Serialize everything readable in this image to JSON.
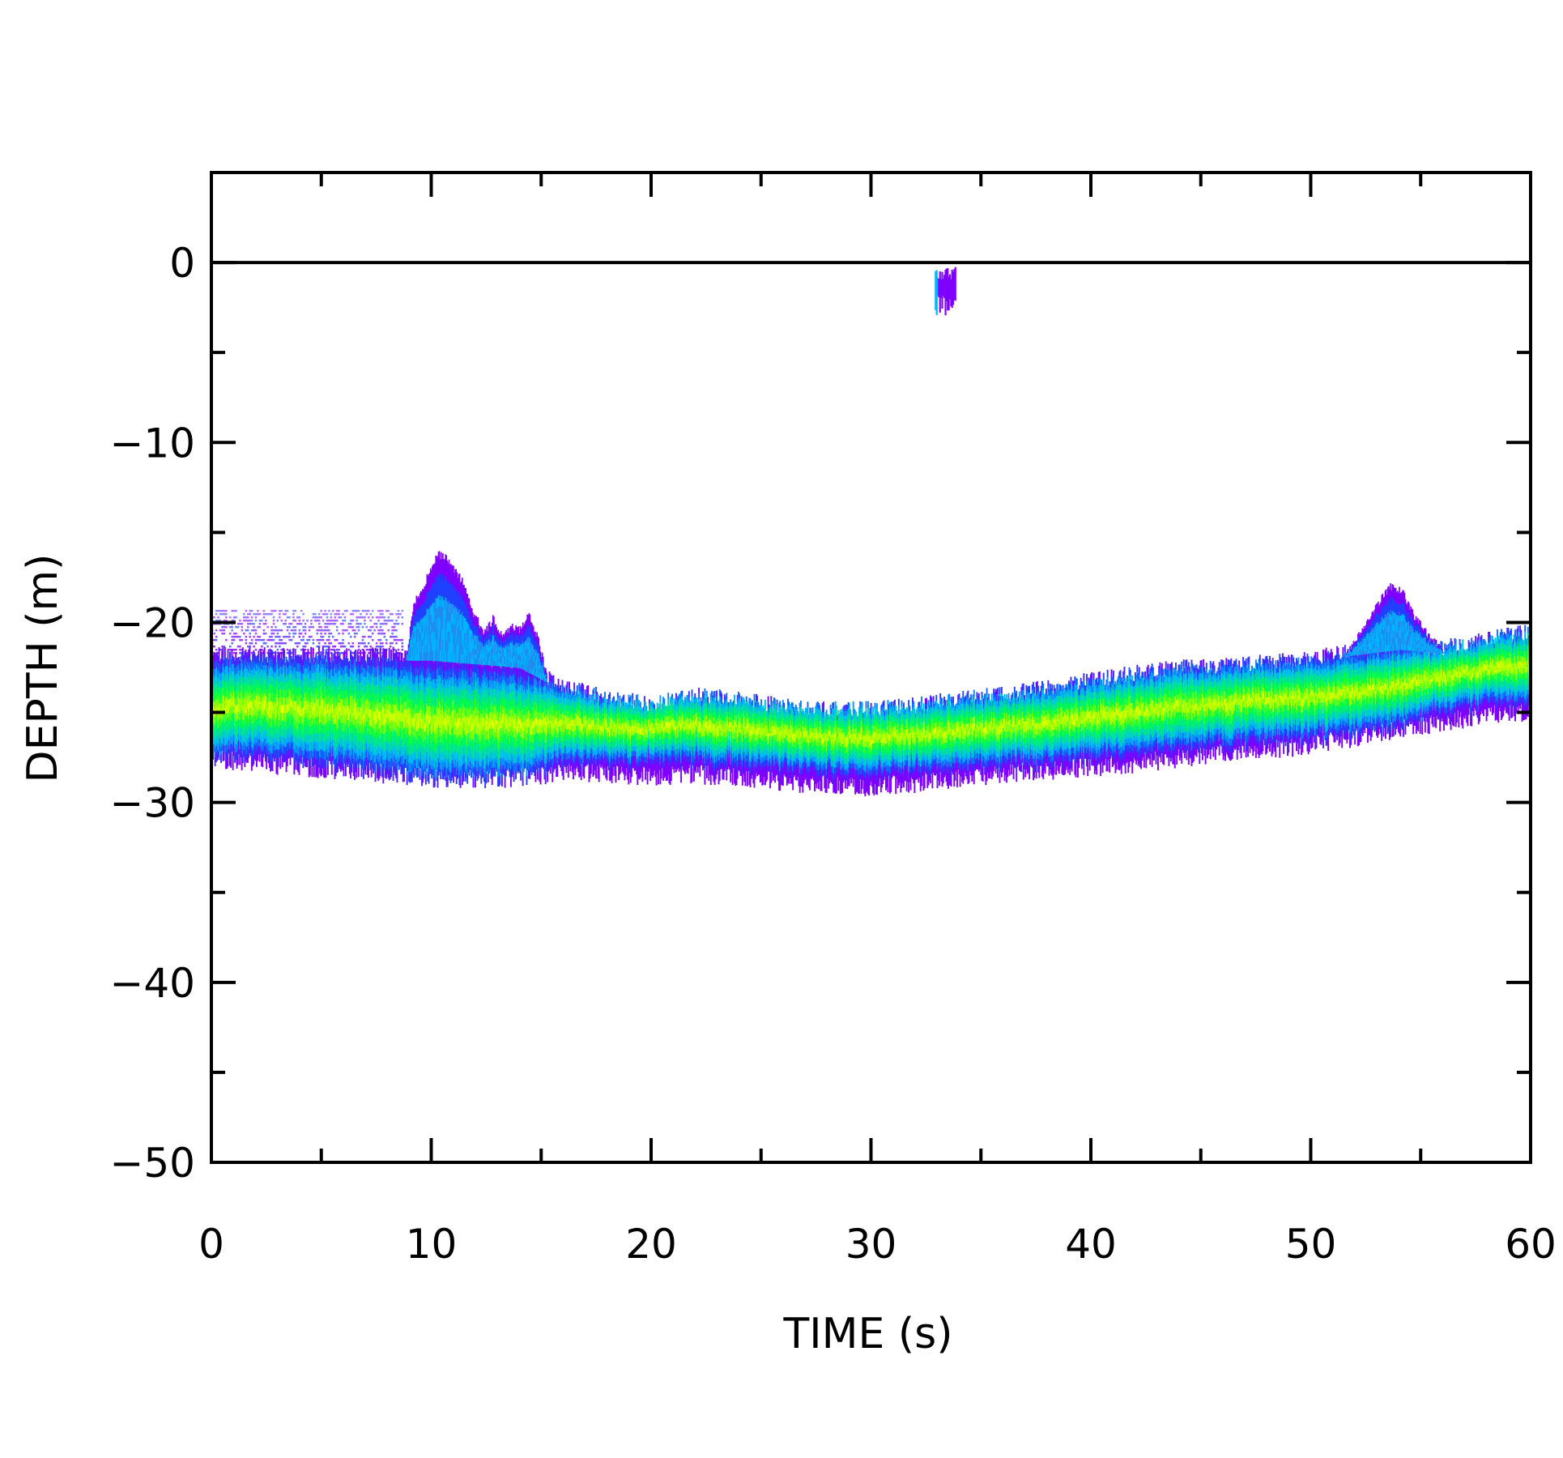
{
  "chart_data": {
    "type": "heatmap",
    "title": "",
    "xlabel": "TIME (s)",
    "ylabel": "DEPTH (m)",
    "xlim": [
      0,
      60
    ],
    "ylim": [
      -50,
      5
    ],
    "x_ticks": [
      0,
      10,
      20,
      30,
      40,
      50,
      60
    ],
    "x_tick_labels": [
      "0",
      "10",
      "20",
      "30",
      "40",
      "50",
      "60"
    ],
    "y_ticks": [
      0,
      -10,
      -20,
      -30,
      -40,
      -50
    ],
    "y_tick_labels": [
      "0",
      "−10",
      "−20",
      "−30",
      "−40",
      "−50"
    ],
    "reference_line": {
      "y": 0
    },
    "colormap": [
      "#7f00ff",
      "#2040ff",
      "#00b4ff",
      "#00e0a0",
      "#00ff40",
      "#a0ff00",
      "#ffff00"
    ],
    "backscatter_layer": {
      "description_units": "depth in m vs time in s",
      "x": [
        0,
        2,
        4,
        6,
        8,
        10,
        12,
        14,
        16,
        18,
        20,
        22,
        24,
        26,
        28,
        30,
        32,
        34,
        36,
        38,
        40,
        42,
        44,
        46,
        48,
        50,
        52,
        54,
        56,
        58,
        60
      ],
      "top": [
        -21.8,
        -21.8,
        -21.8,
        -21.8,
        -21.8,
        -21.8,
        -22.0,
        -22.2,
        -23.5,
        -24.2,
        -24.5,
        -24.0,
        -24.3,
        -24.6,
        -24.8,
        -24.8,
        -24.6,
        -24.2,
        -24.0,
        -23.6,
        -23.2,
        -22.8,
        -22.5,
        -22.4,
        -22.2,
        -22.0,
        -21.5,
        -21.2,
        -21.4,
        -20.9,
        -20.5
      ],
      "center": [
        -24.8,
        -24.6,
        -24.8,
        -25.0,
        -25.2,
        -25.5,
        -25.6,
        -25.7,
        -25.6,
        -25.8,
        -25.9,
        -25.7,
        -25.9,
        -26.2,
        -26.4,
        -26.4,
        -26.2,
        -26.0,
        -25.8,
        -25.6,
        -25.3,
        -25.0,
        -24.7,
        -24.5,
        -24.3,
        -24.2,
        -23.9,
        -23.5,
        -23.0,
        -22.6,
        -22.4
      ],
      "bottom": [
        -27.6,
        -27.8,
        -28.0,
        -28.2,
        -28.4,
        -28.6,
        -28.7,
        -28.6,
        -28.3,
        -28.4,
        -28.5,
        -28.4,
        -28.6,
        -28.9,
        -29.0,
        -29.1,
        -28.9,
        -28.6,
        -28.4,
        -28.2,
        -28.0,
        -27.8,
        -27.5,
        -27.2,
        -27.0,
        -26.8,
        -26.4,
        -25.9,
        -25.5,
        -25.1,
        -24.9
      ]
    },
    "surface_noise_region": {
      "x": [
        0,
        8.7
      ],
      "top": -19.3,
      "bottom": -21.8
    },
    "plumes": [
      {
        "x": [
          8.7,
          9.2,
          9.8,
          10.3,
          10.8,
          11.4,
          11.9,
          12.4,
          12.8,
          13.2,
          13.6,
          14.0,
          14.4,
          14.8,
          15.3
        ],
        "depth": [
          -23.0,
          -19.0,
          -17.5,
          -16.2,
          -16.6,
          -17.8,
          -19.5,
          -20.6,
          -19.8,
          -20.8,
          -20.3,
          -20.4,
          -19.6,
          -20.8,
          -23.3
        ]
      },
      {
        "x": [
          50.8,
          51.5,
          52.3,
          53.0,
          53.6,
          54.1,
          54.6,
          55.1,
          55.6,
          56.0
        ],
        "depth": [
          -23.0,
          -22.0,
          -20.5,
          -19.0,
          -18.0,
          -18.2,
          -19.5,
          -20.4,
          -21.1,
          -21.5
        ]
      }
    ],
    "near_surface_echo": {
      "x": [
        32.9,
        33.8
      ],
      "depth": [
        -0.2,
        -3.0
      ]
    }
  }
}
